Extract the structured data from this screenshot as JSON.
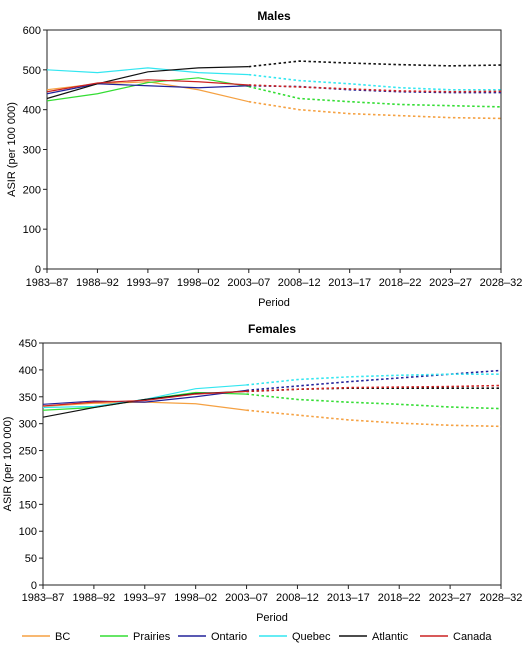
{
  "chart_data": [
    {
      "type": "line",
      "title": "Males",
      "xlabel": "Period",
      "ylabel": "ASIR (per 100 000)",
      "ylim": [
        0,
        600
      ],
      "yticks": [
        0,
        100,
        200,
        300,
        400,
        500,
        600
      ],
      "categories": [
        "1983–87",
        "1988–92",
        "1993–97",
        "1998–02",
        "2003–07",
        "2008–12",
        "2013–17",
        "2018–22",
        "2023–27",
        "2028–32"
      ],
      "observed_through": "2003–07",
      "series": [
        {
          "name": "BC",
          "color": "#f5a142",
          "values": [
            450,
            465,
            470,
            450,
            420,
            400,
            390,
            385,
            380,
            378
          ]
        },
        {
          "name": "Prairies",
          "color": "#33dd33",
          "values": [
            422,
            440,
            468,
            480,
            458,
            428,
            420,
            413,
            410,
            407
          ]
        },
        {
          "name": "Ontario",
          "color": "#22229a",
          "values": [
            440,
            465,
            460,
            455,
            460,
            458,
            450,
            445,
            443,
            443
          ]
        },
        {
          "name": "Quebec",
          "color": "#33e6f0",
          "values": [
            500,
            493,
            505,
            493,
            488,
            473,
            465,
            455,
            450,
            450
          ]
        },
        {
          "name": "Atlantic",
          "color": "#111111",
          "values": [
            428,
            465,
            495,
            505,
            508,
            522,
            517,
            513,
            510,
            512
          ]
        },
        {
          "name": "Canada",
          "color": "#cc2222",
          "values": [
            445,
            467,
            475,
            470,
            462,
            457,
            452,
            447,
            445,
            446
          ]
        }
      ]
    },
    {
      "type": "line",
      "title": "Females",
      "xlabel": "Period",
      "ylabel": "ASIR (per 100 000)",
      "ylim": [
        0,
        450
      ],
      "yticks": [
        0,
        50,
        100,
        150,
        200,
        250,
        300,
        350,
        400,
        450
      ],
      "categories": [
        "1983–87",
        "1988–92",
        "1993–97",
        "1998–02",
        "2003–07",
        "2008–12",
        "2013–17",
        "2018–22",
        "2023–27",
        "2028–32"
      ],
      "observed_through": "2003–07",
      "series": [
        {
          "name": "BC",
          "color": "#f5a142",
          "values": [
            332,
            338,
            340,
            337,
            325,
            316,
            307,
            301,
            297,
            295
          ]
        },
        {
          "name": "Prairies",
          "color": "#33dd33",
          "values": [
            325,
            330,
            345,
            358,
            355,
            345,
            340,
            336,
            331,
            328
          ]
        },
        {
          "name": "Ontario",
          "color": "#22229a",
          "values": [
            336,
            342,
            340,
            350,
            362,
            370,
            378,
            385,
            392,
            399
          ]
        },
        {
          "name": "Quebec",
          "color": "#33e6f0",
          "values": [
            330,
            332,
            345,
            365,
            372,
            382,
            387,
            390,
            392,
            392
          ]
        },
        {
          "name": "Atlantic",
          "color": "#111111",
          "values": [
            312,
            330,
            345,
            356,
            360,
            364,
            366,
            366,
            366,
            366
          ]
        },
        {
          "name": "Canada",
          "color": "#cc2222",
          "values": [
            333,
            340,
            343,
            355,
            360,
            364,
            367,
            368,
            369,
            371
          ]
        }
      ]
    }
  ],
  "legend": [
    {
      "name": "BC",
      "color": "#f5a142"
    },
    {
      "name": "Prairies",
      "color": "#33dd33"
    },
    {
      "name": "Ontario",
      "color": "#22229a"
    },
    {
      "name": "Quebec",
      "color": "#33e6f0"
    },
    {
      "name": "Atlantic",
      "color": "#111111"
    },
    {
      "name": "Canada",
      "color": "#cc2222"
    }
  ]
}
